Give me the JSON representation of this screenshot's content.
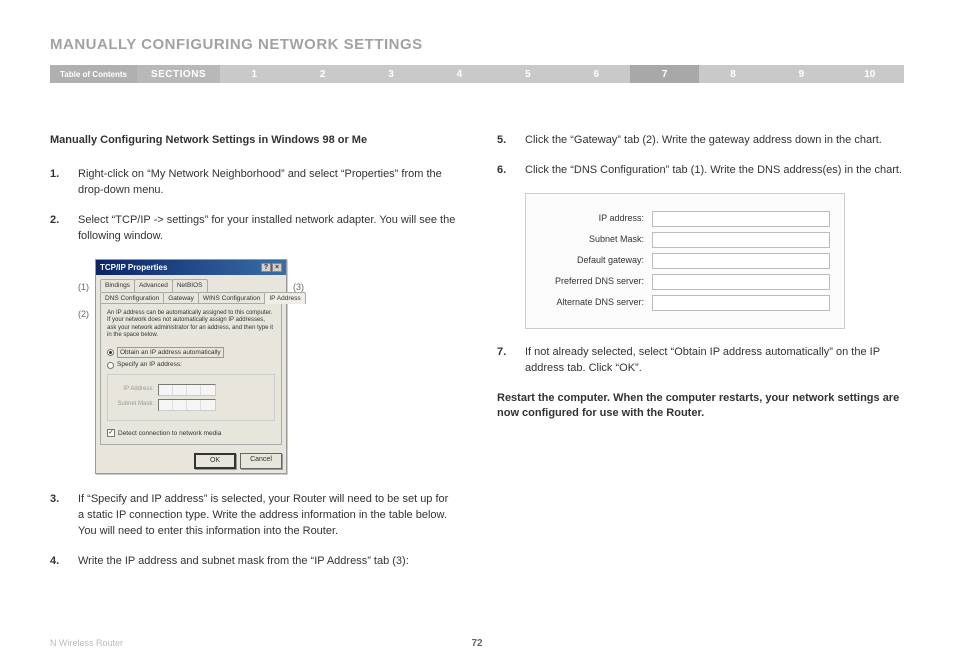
{
  "title": "MANUALLY CONFIGURING NETWORK SETTINGS",
  "nav": {
    "toc": "Table of Contents",
    "sections": "SECTIONS",
    "items": [
      "1",
      "2",
      "3",
      "4",
      "5",
      "6",
      "7",
      "8",
      "9",
      "10"
    ],
    "active_index": 6
  },
  "subheading": "Manually Configuring Network Settings in Windows 98 or Me",
  "left_steps": [
    {
      "n": "1.",
      "t": "Right-click on “My Network Neighborhood” and select “Properties” from the drop-down menu."
    },
    {
      "n": "2.",
      "t": "Select “TCP/IP -> settings” for your installed network adapter. You will see the following window."
    }
  ],
  "left_steps_after": [
    {
      "n": "3.",
      "t": "If “Specify and IP address” is selected, your Router will need to be set up for a static IP connection type. Write the address information in the table below. You will need to enter this information into the Router."
    },
    {
      "n": "4.",
      "t": "Write the IP address and subnet mask from the “IP Address” tab (3):"
    }
  ],
  "right_steps": [
    {
      "n": "5.",
      "t": "Click the “Gateway” tab (2). Write the gateway address down in the chart."
    },
    {
      "n": "6.",
      "t": "Click the “DNS Configuration” tab (1). Write the DNS address(es) in the chart."
    }
  ],
  "right_step7": {
    "n": "7.",
    "t": "If not already selected, select “Obtain IP address automatically” on the IP address tab. Click “OK”."
  },
  "restart": "Restart the computer. When the computer restarts, your network settings are now configured for use with the Router.",
  "markers": {
    "m1": "(1)",
    "m2": "(2)",
    "m3": "(3)"
  },
  "dialog": {
    "title": "TCP/IP Properties",
    "help": "?",
    "close": "×",
    "tabs_top": [
      "Bindings",
      "Advanced",
      "NetBIOS"
    ],
    "tabs_bot": [
      "DNS Configuration",
      "Gateway",
      "WINS Configuration",
      "IP Address"
    ],
    "info": "An IP address can be automatically assigned to this computer. If your network does not automatically assign IP addresses, ask your network administrator for an address, and then type it in the space below.",
    "radio_auto": "Obtain an IP address automatically",
    "radio_spec": "Specify an IP address:",
    "ip_label": "IP Address:",
    "mask_label": "Subnet Mask:",
    "detect": "Detect connection to network media",
    "ok": "OK",
    "cancel": "Cancel"
  },
  "chart": {
    "rows": [
      "IP address:",
      "Subnet Mask:",
      "Default gateway:",
      "Preferred DNS server:",
      "Alternate DNS server:"
    ]
  },
  "footer": {
    "product": "N Wireless Router",
    "page": "72"
  }
}
